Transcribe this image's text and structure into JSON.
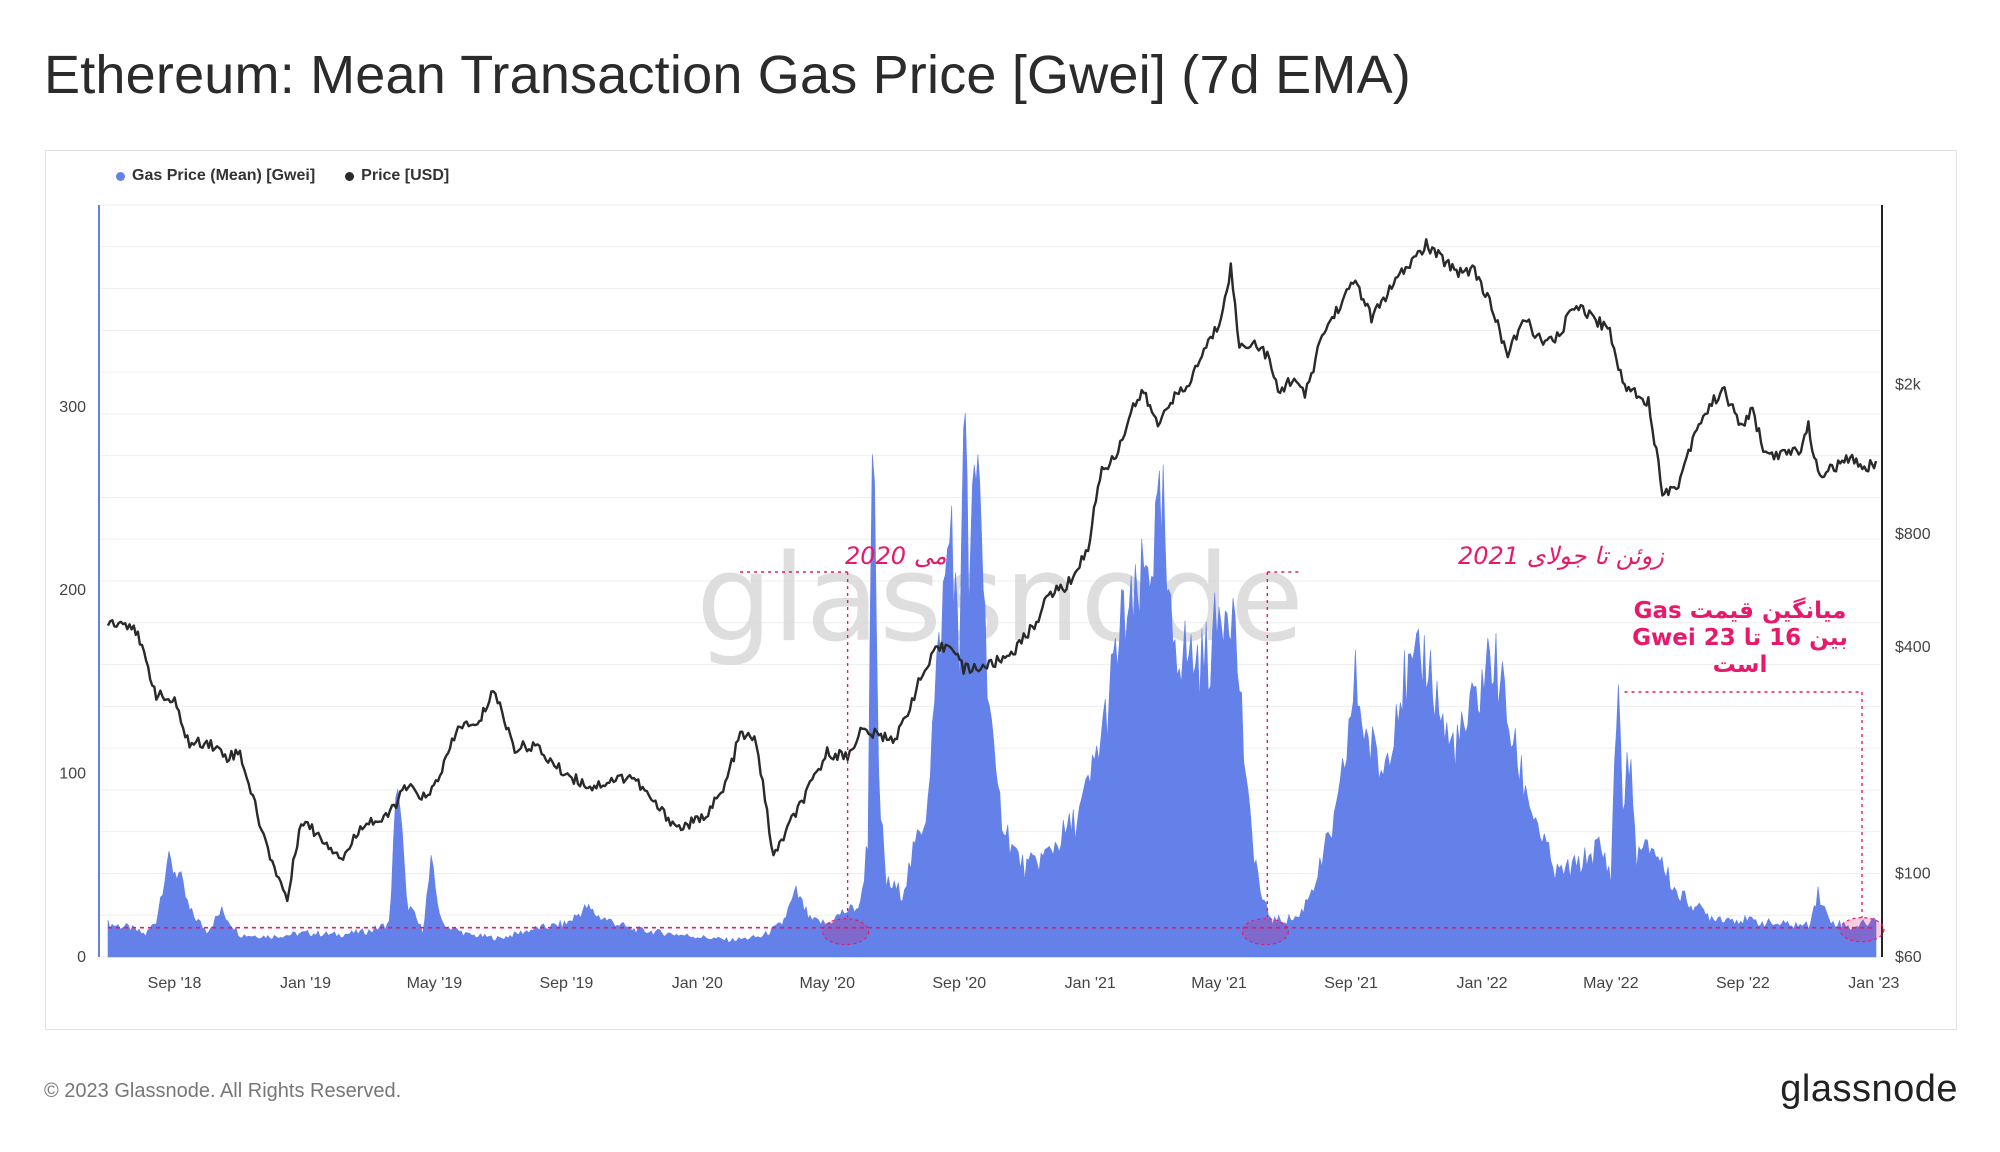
{
  "header": {
    "title": "Ethereum: Mean Transaction Gas Price [Gwei] (7d EMA)"
  },
  "footer": {
    "copyright": "© 2023 Glassnode. All Rights Reserved.",
    "logo_text": "glassnode"
  },
  "watermark": "glassnode",
  "colors": {
    "gas": "#6381e9",
    "price": "#2a2a2a",
    "annotation": "#e8196b",
    "grid": "#eeeeee",
    "left_axis": "#6381e9",
    "right_axis": "#222222"
  },
  "chart_data": {
    "type": "area",
    "title": "Ethereum: Mean Transaction Gas Price [Gwei] (7d EMA)",
    "legend": {
      "placement": "top-left",
      "entries": [
        {
          "name": "Gas Price (Mean) [Gwei]",
          "color": "#6381e9"
        },
        {
          "name": "Price [USD]",
          "color": "#2a2a2a"
        }
      ]
    },
    "x_ticks": [
      "Sep '18",
      "Jan '19",
      "May '19",
      "Sep '19",
      "Jan '20",
      "May '20",
      "Sep '20",
      "Jan '21",
      "May '21",
      "Sep '21",
      "Jan '22",
      "May '22",
      "Sep '22",
      "Jan '23"
    ],
    "x_range": [
      "2018-07-01",
      "2023-01-03"
    ],
    "y_left": {
      "ticks": [
        "0",
        "100",
        "200",
        "300"
      ],
      "range": [
        0,
        410
      ]
    },
    "y_right": {
      "ticks": [
        "$60",
        "$100",
        "$400",
        "$800",
        "$2k"
      ],
      "tick_values": [
        60,
        100,
        400,
        800,
        2000
      ],
      "scale": "log",
      "range": [
        60,
        6000
      ]
    },
    "grid": true,
    "series": [
      {
        "name": "Gas Price (Mean) [Gwei]",
        "axis": "left",
        "style": "area",
        "points": [
          [
            "2018-07-01",
            18
          ],
          [
            "2018-07-20",
            16
          ],
          [
            "2018-08-05",
            12
          ],
          [
            "2018-08-15",
            20
          ],
          [
            "2018-08-25",
            52
          ],
          [
            "2018-09-05",
            45
          ],
          [
            "2018-09-15",
            25
          ],
          [
            "2018-10-01",
            14
          ],
          [
            "2018-10-15",
            25
          ],
          [
            "2018-11-01",
            12
          ],
          [
            "2018-12-01",
            11
          ],
          [
            "2019-01-01",
            13
          ],
          [
            "2019-02-01",
            12
          ],
          [
            "2019-03-01",
            14
          ],
          [
            "2019-03-20",
            18
          ],
          [
            "2019-03-28",
            100
          ],
          [
            "2019-04-05",
            30
          ],
          [
            "2019-04-20",
            14
          ],
          [
            "2019-04-28",
            50
          ],
          [
            "2019-05-08",
            18
          ],
          [
            "2019-06-01",
            12
          ],
          [
            "2019-07-01",
            10
          ],
          [
            "2019-08-01",
            15
          ],
          [
            "2019-09-01",
            18
          ],
          [
            "2019-09-20",
            27
          ],
          [
            "2019-10-01",
            22
          ],
          [
            "2019-11-01",
            15
          ],
          [
            "2019-12-01",
            13
          ],
          [
            "2020-01-01",
            11
          ],
          [
            "2020-02-01",
            9
          ],
          [
            "2020-03-01",
            11
          ],
          [
            "2020-03-20",
            18
          ],
          [
            "2020-04-02",
            35
          ],
          [
            "2020-04-15",
            20
          ],
          [
            "2020-05-01",
            18
          ],
          [
            "2020-05-15",
            24
          ],
          [
            "2020-06-01",
            28
          ],
          [
            "2020-06-08",
            65
          ],
          [
            "2020-06-12",
            305
          ],
          [
            "2020-06-18",
            90
          ],
          [
            "2020-06-25",
            40
          ],
          [
            "2020-07-10",
            35
          ],
          [
            "2020-08-01",
            80
          ],
          [
            "2020-08-15",
            180
          ],
          [
            "2020-08-25",
            240
          ],
          [
            "2020-09-01",
            150
          ],
          [
            "2020-09-05",
            315
          ],
          [
            "2020-09-10",
            200
          ],
          [
            "2020-09-15",
            250
          ],
          [
            "2020-09-20",
            270
          ],
          [
            "2020-09-25",
            180
          ],
          [
            "2020-10-05",
            90
          ],
          [
            "2020-10-20",
            60
          ],
          [
            "2020-11-01",
            48
          ],
          [
            "2020-11-20",
            55
          ],
          [
            "2020-12-05",
            65
          ],
          [
            "2020-12-20",
            75
          ],
          [
            "2021-01-01",
            95
          ],
          [
            "2021-01-15",
            130
          ],
          [
            "2021-02-01",
            185
          ],
          [
            "2021-02-10",
            185
          ],
          [
            "2021-02-20",
            205
          ],
          [
            "2021-03-01",
            225
          ],
          [
            "2021-03-10",
            240
          ],
          [
            "2021-03-15",
            180
          ],
          [
            "2021-03-25",
            170
          ],
          [
            "2021-04-01",
            165
          ],
          [
            "2021-04-15",
            160
          ],
          [
            "2021-04-25",
            170
          ],
          [
            "2021-05-05",
            195
          ],
          [
            "2021-05-12",
            200
          ],
          [
            "2021-05-20",
            150
          ],
          [
            "2021-05-28",
            80
          ],
          [
            "2021-06-10",
            30
          ],
          [
            "2021-06-20",
            20
          ],
          [
            "2021-07-01",
            20
          ],
          [
            "2021-07-15",
            22
          ],
          [
            "2021-08-01",
            45
          ],
          [
            "2021-08-20",
            80
          ],
          [
            "2021-09-05",
            150
          ],
          [
            "2021-09-15",
            120
          ],
          [
            "2021-10-01",
            100
          ],
          [
            "2021-10-15",
            145
          ],
          [
            "2021-11-01",
            155
          ],
          [
            "2021-11-10",
            165
          ],
          [
            "2021-11-20",
            140
          ],
          [
            "2021-12-01",
            115
          ],
          [
            "2021-12-15",
            120
          ],
          [
            "2022-01-01",
            150
          ],
          [
            "2022-01-10",
            165
          ],
          [
            "2022-01-20",
            145
          ],
          [
            "2022-02-01",
            110
          ],
          [
            "2022-02-20",
            75
          ],
          [
            "2022-03-10",
            45
          ],
          [
            "2022-04-01",
            50
          ],
          [
            "2022-04-20",
            60
          ],
          [
            "2022-05-01",
            45
          ],
          [
            "2022-05-08",
            155
          ],
          [
            "2022-05-12",
            80
          ],
          [
            "2022-05-18",
            110
          ],
          [
            "2022-05-25",
            55
          ],
          [
            "2022-06-10",
            60
          ],
          [
            "2022-07-01",
            35
          ],
          [
            "2022-08-01",
            22
          ],
          [
            "2022-09-01",
            20
          ],
          [
            "2022-10-01",
            18
          ],
          [
            "2022-11-01",
            17
          ],
          [
            "2022-11-10",
            35
          ],
          [
            "2022-11-20",
            20
          ],
          [
            "2022-12-10",
            16
          ],
          [
            "2023-01-03",
            20
          ]
        ]
      },
      {
        "name": "Price [USD]",
        "axis": "right",
        "style": "line",
        "points": [
          [
            "2018-07-01",
            470
          ],
          [
            "2018-07-25",
            460
          ],
          [
            "2018-08-15",
            300
          ],
          [
            "2018-09-01",
            285
          ],
          [
            "2018-09-15",
            220
          ],
          [
            "2018-10-01",
            225
          ],
          [
            "2018-10-20",
            205
          ],
          [
            "2018-11-01",
            210
          ],
          [
            "2018-11-25",
            120
          ],
          [
            "2018-12-15",
            85
          ],
          [
            "2018-12-28",
            140
          ],
          [
            "2019-01-15",
            125
          ],
          [
            "2019-02-05",
            110
          ],
          [
            "2019-02-25",
            138
          ],
          [
            "2019-03-15",
            138
          ],
          [
            "2019-04-05",
            170
          ],
          [
            "2019-04-25",
            158
          ],
          [
            "2019-05-10",
            195
          ],
          [
            "2019-05-25",
            250
          ],
          [
            "2019-06-10",
            245
          ],
          [
            "2019-06-25",
            310
          ],
          [
            "2019-07-15",
            215
          ],
          [
            "2019-08-01",
            220
          ],
          [
            "2019-08-25",
            190
          ],
          [
            "2019-09-10",
            178
          ],
          [
            "2019-09-25",
            170
          ],
          [
            "2019-10-15",
            178
          ],
          [
            "2019-11-01",
            182
          ],
          [
            "2019-11-25",
            150
          ],
          [
            "2019-12-15",
            132
          ],
          [
            "2020-01-05",
            140
          ],
          [
            "2020-01-25",
            165
          ],
          [
            "2020-02-10",
            235
          ],
          [
            "2020-02-25",
            225
          ],
          [
            "2020-03-12",
            110
          ],
          [
            "2020-03-25",
            132
          ],
          [
            "2020-04-15",
            170
          ],
          [
            "2020-05-01",
            210
          ],
          [
            "2020-05-20",
            205
          ],
          [
            "2020-06-01",
            240
          ],
          [
            "2020-06-20",
            232
          ],
          [
            "2020-07-05",
            230
          ],
          [
            "2020-07-25",
            320
          ],
          [
            "2020-08-10",
            390
          ],
          [
            "2020-08-25",
            410
          ],
          [
            "2020-09-05",
            350
          ],
          [
            "2020-09-25",
            355
          ],
          [
            "2020-10-10",
            370
          ],
          [
            "2020-10-25",
            400
          ],
          [
            "2020-11-10",
            460
          ],
          [
            "2020-11-25",
            560
          ],
          [
            "2020-12-10",
            580
          ],
          [
            "2020-12-30",
            730
          ],
          [
            "2021-01-10",
            1150
          ],
          [
            "2021-01-25",
            1300
          ],
          [
            "2021-02-10",
            1750
          ],
          [
            "2021-02-20",
            1900
          ],
          [
            "2021-03-05",
            1550
          ],
          [
            "2021-03-15",
            1800
          ],
          [
            "2021-04-01",
            1950
          ],
          [
            "2021-04-15",
            2400
          ],
          [
            "2021-05-01",
            2900
          ],
          [
            "2021-05-12",
            4100
          ],
          [
            "2021-05-20",
            2500
          ],
          [
            "2021-06-01",
            2600
          ],
          [
            "2021-06-15",
            2400
          ],
          [
            "2021-06-25",
            1900
          ],
          [
            "2021-07-10",
            2100
          ],
          [
            "2021-07-20",
            1850
          ],
          [
            "2021-08-05",
            2700
          ],
          [
            "2021-08-20",
            3200
          ],
          [
            "2021-09-05",
            3800
          ],
          [
            "2021-09-20",
            3000
          ],
          [
            "2021-10-05",
            3500
          ],
          [
            "2021-10-20",
            4000
          ],
          [
            "2021-11-10",
            4700
          ],
          [
            "2021-11-25",
            4300
          ],
          [
            "2021-12-10",
            4000
          ],
          [
            "2021-12-25",
            4050
          ],
          [
            "2022-01-10",
            3200
          ],
          [
            "2022-01-25",
            2400
          ],
          [
            "2022-02-10",
            3000
          ],
          [
            "2022-02-25",
            2600
          ],
          [
            "2022-03-10",
            2600
          ],
          [
            "2022-03-30",
            3300
          ],
          [
            "2022-04-15",
            3000
          ],
          [
            "2022-04-30",
            2800
          ],
          [
            "2022-05-12",
            2000
          ],
          [
            "2022-05-25",
            1900
          ],
          [
            "2022-06-05",
            1800
          ],
          [
            "2022-06-18",
            1050
          ],
          [
            "2022-07-01",
            1050
          ],
          [
            "2022-07-20",
            1550
          ],
          [
            "2022-08-13",
            1950
          ],
          [
            "2022-08-30",
            1550
          ],
          [
            "2022-09-10",
            1700
          ],
          [
            "2022-09-22",
            1300
          ],
          [
            "2022-10-10",
            1300
          ],
          [
            "2022-10-25",
            1350
          ],
          [
            "2022-11-01",
            1550
          ],
          [
            "2022-11-10",
            1150
          ],
          [
            "2022-11-25",
            1200
          ],
          [
            "2022-12-10",
            1270
          ],
          [
            "2022-12-25",
            1200
          ],
          [
            "2023-01-03",
            1250
          ]
        ]
      }
    ],
    "threshold_line": {
      "value": 16,
      "axis": "left"
    },
    "annotations": [
      {
        "label": "می 2020",
        "date": "2020-05-20"
      },
      {
        "label": "زوئن تا جولای 2021",
        "date": "2021-06-15"
      },
      {
        "label_lines": [
          "میانگین قیمت Gas",
          "بین 16 تا 23 Gwei",
          "است"
        ],
        "date_start": "2022-05-10",
        "date_end": "2022-12-25"
      }
    ]
  }
}
